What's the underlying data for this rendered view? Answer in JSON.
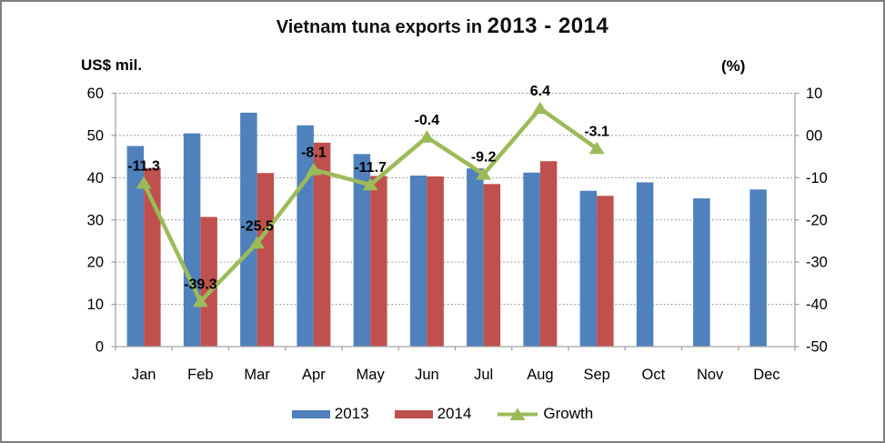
{
  "title": {
    "prefix": "Vietnam tuna exports in ",
    "years": "2013 - 2014"
  },
  "left_axis_unit": "US$ mil.",
  "right_axis_unit": "(%)",
  "chart_data": {
    "type": "bar",
    "subtype": "grouped bars with overlaid line (secondary axis)",
    "title": "Vietnam tuna exports in 2013 - 2014",
    "categories": [
      "Jan",
      "Feb",
      "Mar",
      "Apr",
      "May",
      "Jun",
      "Jul",
      "Aug",
      "Sep",
      "Oct",
      "Nov",
      "Dec"
    ],
    "series": [
      {
        "name": "2013",
        "type": "bar",
        "axis": "left",
        "color": "#4f81bd",
        "values": [
          47.5,
          50.5,
          55.4,
          52.4,
          45.6,
          40.5,
          42.2,
          41.2,
          36.9,
          38.9,
          35.1,
          37.2
        ]
      },
      {
        "name": "2014",
        "type": "bar",
        "axis": "left",
        "color": "#c0504d",
        "values": [
          42.3,
          30.7,
          41.1,
          48.3,
          40.4,
          40.3,
          38.5,
          43.9,
          35.7,
          null,
          null,
          null
        ]
      },
      {
        "name": "Growth",
        "type": "line",
        "axis": "right",
        "color": "#9bbb59",
        "marker": "triangle",
        "values": [
          -11.3,
          -39.3,
          -25.5,
          -8.1,
          -11.7,
          -0.4,
          -9.2,
          6.4,
          -3.1,
          null,
          null,
          null
        ],
        "labels": [
          "-11.3",
          "-39.3",
          "-25.5",
          "-8.1",
          "-11.7",
          "-0.4",
          "-9.2",
          "6.4",
          "-3.1",
          "",
          "",
          ""
        ]
      }
    ],
    "left_axis": {
      "label": "US$ mil.",
      "min": 0,
      "max": 60,
      "step": 10,
      "tick_labels": [
        "60",
        "50",
        "40",
        "30",
        "20",
        "10",
        "0"
      ]
    },
    "right_axis": {
      "label": "(%)",
      "min": -50,
      "max": 10,
      "step": 10,
      "tick_labels": [
        "10",
        "00",
        "-10",
        "-20",
        "-30",
        "-40",
        "-50"
      ]
    },
    "grid": "horizontal dotted",
    "legend_position": "bottom"
  },
  "legend": {
    "items": [
      {
        "label": "2013"
      },
      {
        "label": "2014"
      },
      {
        "label": "Growth"
      }
    ]
  }
}
